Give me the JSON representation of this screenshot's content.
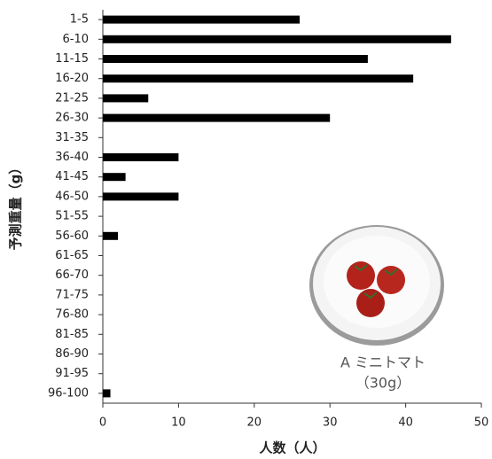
{
  "chart_data": {
    "type": "bar",
    "orientation": "horizontal",
    "categories": [
      "1-5",
      "6-10",
      "11-15",
      "16-20",
      "21-25",
      "26-30",
      "31-35",
      "36-40",
      "41-45",
      "46-50",
      "51-55",
      "56-60",
      "61-65",
      "66-70",
      "71-75",
      "76-80",
      "81-85",
      "86-90",
      "91-95",
      "96-100"
    ],
    "values": [
      26,
      46,
      35,
      41,
      6,
      30,
      0,
      10,
      3,
      10,
      0,
      2,
      0,
      0,
      0,
      0,
      0,
      0,
      0,
      1
    ],
    "color": "#000000",
    "xlim": [
      0,
      50
    ],
    "xticks": [
      0,
      10,
      20,
      30,
      40,
      50
    ],
    "xlabel": "人数（人）",
    "ylabel": "予測重量（g）",
    "annotations": [
      "A ミニトマト",
      "（30g）"
    ]
  }
}
